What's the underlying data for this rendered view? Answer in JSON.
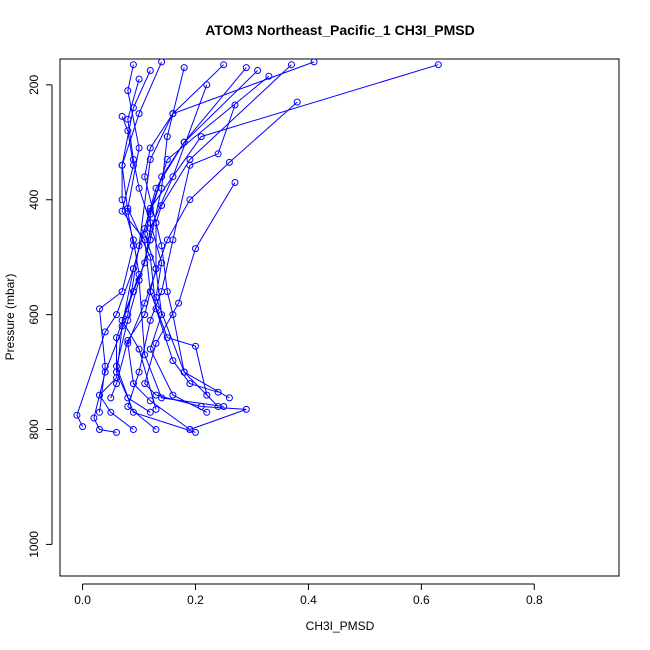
{
  "chart_data": {
    "type": "line",
    "title": "ATOM3 Northeast_Pacific_1 CH3I_PMSD",
    "xlabel": "CH3I_PMSD",
    "ylabel": "Pressure (mbar)",
    "xlim": [
      -0.04,
      0.95
    ],
    "ylim": [
      1055,
      155
    ],
    "y_reversed": true,
    "x_ticks": [
      0.0,
      0.2,
      0.4,
      0.6,
      0.8
    ],
    "x_tick_labels": [
      "0.0",
      "0.2",
      "0.4",
      "0.6",
      "0.8"
    ],
    "y_ticks": [
      200,
      400,
      600,
      800,
      1000
    ],
    "y_tick_labels": [
      "200",
      "400",
      "600",
      "800",
      "1000"
    ],
    "grid": false,
    "legend": "none",
    "color": "#0000ff",
    "series": [
      {
        "points": [
          [
            0.41,
            160
          ],
          [
            0.16,
            250
          ],
          [
            0.12,
            330
          ],
          [
            0.1,
            480
          ],
          [
            0.08,
            600
          ],
          [
            0.04,
            700
          ],
          [
            0.02,
            780
          ],
          [
            0.03,
            800
          ],
          [
            0.06,
            805
          ]
        ]
      },
      {
        "points": [
          [
            0.63,
            165
          ],
          [
            0.21,
            290
          ],
          [
            0.12,
            415
          ],
          [
            0.09,
            520
          ],
          [
            0.07,
            620
          ],
          [
            0.06,
            710
          ],
          [
            0.03,
            740
          ],
          [
            0.05,
            770
          ],
          [
            0.09,
            800
          ]
        ]
      },
      {
        "points": [
          [
            0.38,
            230
          ],
          [
            0.26,
            335
          ],
          [
            0.19,
            400
          ],
          [
            0.15,
            470
          ],
          [
            0.11,
            580
          ],
          [
            0.08,
            650
          ],
          [
            0.09,
            720
          ],
          [
            0.12,
            750
          ],
          [
            0.19,
            800
          ]
        ]
      },
      {
        "points": [
          [
            0.27,
            370
          ],
          [
            0.2,
            485
          ],
          [
            0.17,
            580
          ],
          [
            0.13,
            650
          ],
          [
            0.11,
            720
          ],
          [
            0.13,
            740
          ],
          [
            0.21,
            760
          ],
          [
            0.29,
            765
          ],
          [
            0.19,
            800
          ]
        ]
      },
      {
        "points": [
          [
            0.29,
            170
          ],
          [
            0.18,
            300
          ],
          [
            0.13,
            380
          ],
          [
            0.11,
            450
          ],
          [
            0.09,
            520
          ],
          [
            0.06,
            600
          ],
          [
            0.04,
            630
          ],
          [
            -0.01,
            775
          ],
          [
            0.0,
            795
          ]
        ]
      },
      {
        "points": [
          [
            0.14,
            160
          ],
          [
            0.1,
            250
          ],
          [
            0.07,
            340
          ],
          [
            0.08,
            420
          ],
          [
            0.09,
            480
          ],
          [
            0.07,
            560
          ],
          [
            0.03,
            590
          ],
          [
            0.04,
            690
          ],
          [
            0.03,
            770
          ]
        ]
      },
      {
        "points": [
          [
            0.07,
            255
          ],
          [
            0.08,
            280
          ],
          [
            0.09,
            340
          ],
          [
            0.07,
            420
          ],
          [
            0.11,
            470
          ],
          [
            0.12,
            560
          ],
          [
            0.15,
            640
          ],
          [
            0.2,
            655
          ],
          [
            0.22,
            740
          ]
        ]
      },
      {
        "points": [
          [
            0.27,
            235
          ],
          [
            0.24,
            320
          ],
          [
            0.19,
            340
          ],
          [
            0.16,
            470
          ],
          [
            0.14,
            560
          ],
          [
            0.12,
            610
          ],
          [
            0.1,
            700
          ],
          [
            0.08,
            760
          ],
          [
            0.13,
            800
          ]
        ]
      },
      {
        "points": [
          [
            0.18,
            170
          ],
          [
            0.15,
            290
          ],
          [
            0.14,
            380
          ],
          [
            0.12,
            470
          ],
          [
            0.1,
            540
          ],
          [
            0.08,
            610
          ],
          [
            0.06,
            690
          ],
          [
            0.09,
            770
          ],
          [
            0.2,
            805
          ]
        ]
      },
      {
        "points": [
          [
            0.25,
            165
          ],
          [
            0.16,
            250
          ],
          [
            0.12,
            310
          ],
          [
            0.11,
            360
          ],
          [
            0.14,
            480
          ],
          [
            0.15,
            560
          ],
          [
            0.16,
            600
          ],
          [
            0.18,
            700
          ],
          [
            0.24,
            760
          ]
        ]
      },
      {
        "points": [
          [
            0.09,
            165
          ],
          [
            0.08,
            210
          ],
          [
            0.1,
            310
          ],
          [
            0.08,
            415
          ],
          [
            0.12,
            500
          ],
          [
            0.13,
            590
          ],
          [
            0.16,
            680
          ],
          [
            0.19,
            720
          ],
          [
            0.24,
            735
          ]
        ]
      },
      {
        "points": [
          [
            0.12,
            175
          ],
          [
            0.09,
            240
          ],
          [
            0.07,
            340
          ],
          [
            0.07,
            400
          ],
          [
            0.09,
            470
          ],
          [
            0.1,
            530
          ],
          [
            0.07,
            610
          ],
          [
            0.1,
            660
          ],
          [
            0.13,
            765
          ]
        ]
      },
      {
        "points": [
          [
            0.37,
            165
          ],
          [
            0.19,
            330
          ],
          [
            0.14,
            410
          ],
          [
            0.13,
            440
          ],
          [
            0.13,
            520
          ],
          [
            0.11,
            600
          ],
          [
            0.08,
            645
          ],
          [
            0.06,
            720
          ],
          [
            0.05,
            745
          ]
        ]
      },
      {
        "points": [
          [
            0.22,
            200
          ],
          [
            0.16,
            360
          ],
          [
            0.12,
            450
          ],
          [
            0.11,
            510
          ],
          [
            0.09,
            560
          ],
          [
            0.06,
            640
          ],
          [
            0.06,
            700
          ],
          [
            0.08,
            745
          ],
          [
            0.12,
            770
          ]
        ]
      },
      {
        "points": [
          [
            0.31,
            175
          ],
          [
            0.18,
            300
          ],
          [
            0.14,
            360
          ],
          [
            0.12,
            420
          ],
          [
            0.12,
            470
          ],
          [
            0.1,
            540
          ],
          [
            0.11,
            670
          ],
          [
            0.14,
            745
          ],
          [
            0.25,
            760
          ]
        ]
      },
      {
        "points": [
          [
            0.33,
            185
          ],
          [
            0.15,
            330
          ],
          [
            0.12,
            425
          ],
          [
            0.11,
            460
          ],
          [
            0.13,
            520
          ],
          [
            0.14,
            600
          ],
          [
            0.12,
            660
          ],
          [
            0.16,
            740
          ],
          [
            0.22,
            770
          ]
        ]
      },
      {
        "points": [
          [
            0.1,
            190
          ],
          [
            0.08,
            260
          ],
          [
            0.09,
            330
          ],
          [
            0.1,
            380
          ],
          [
            0.12,
            440
          ],
          [
            0.14,
            510
          ],
          [
            0.13,
            570
          ],
          [
            0.18,
            700
          ],
          [
            0.26,
            745
          ]
        ]
      }
    ]
  }
}
